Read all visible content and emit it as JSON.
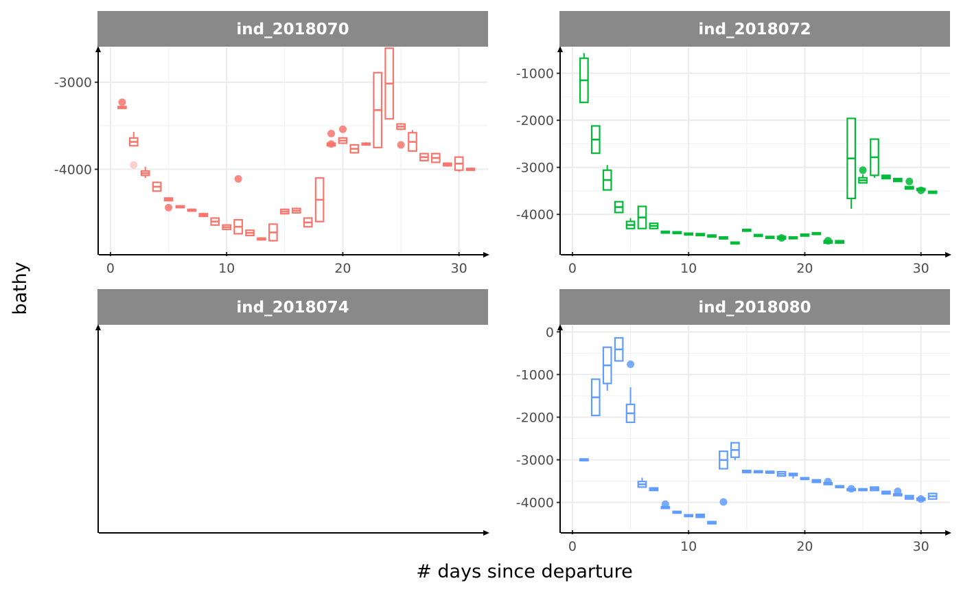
{
  "xlabel": "# days since departure",
  "ylabel": "bathy",
  "chart_data": [
    {
      "type": "boxplot",
      "facet": "ind_2018070",
      "color": "#F8766D",
      "xlim": [
        -1,
        32.5
      ],
      "ylim": [
        -4950,
        -2600
      ],
      "x_ticks": [
        0,
        10,
        20,
        30
      ],
      "y_ticks": [
        -3000,
        -4000
      ],
      "boxes": [
        {
          "x": 1,
          "q1": -3300,
          "q3": -3280,
          "lo": -3300,
          "hi": -3280
        },
        {
          "x": 2,
          "q1": -3730,
          "q3": -3640,
          "lo": -3730,
          "hi": -3570
        },
        {
          "x": 3,
          "q1": -4070,
          "q3": -4020,
          "lo": -4100,
          "hi": -3970
        },
        {
          "x": 4,
          "q1": -4250,
          "q3": -4150,
          "lo": -4260,
          "hi": -4140
        },
        {
          "x": 5,
          "q1": -4360,
          "q3": -4330,
          "lo": -4370,
          "hi": -4320
        },
        {
          "x": 6,
          "q1": -4430,
          "q3": -4420,
          "lo": -4440,
          "hi": -4410
        },
        {
          "x": 7,
          "q1": -4470,
          "q3": -4460,
          "lo": -4480,
          "hi": -4450
        },
        {
          "x": 8,
          "q1": -4540,
          "q3": -4510,
          "lo": -4550,
          "hi": -4500
        },
        {
          "x": 9,
          "q1": -4640,
          "q3": -4560,
          "lo": -4650,
          "hi": -4550
        },
        {
          "x": 10,
          "q1": -4690,
          "q3": -4640,
          "lo": -4700,
          "hi": -4630
        },
        {
          "x": 11,
          "q1": -4740,
          "q3": -4580,
          "lo": -4750,
          "hi": -4570
        },
        {
          "x": 12,
          "q1": -4760,
          "q3": -4700,
          "lo": -4770,
          "hi": -4690
        },
        {
          "x": 13,
          "q1": -4810,
          "q3": -4790,
          "lo": -4820,
          "hi": -4780
        },
        {
          "x": 14,
          "q1": -4820,
          "q3": -4630,
          "lo": -4830,
          "hi": -4620
        },
        {
          "x": 15,
          "q1": -4510,
          "q3": -4460,
          "lo": -4520,
          "hi": -4450
        },
        {
          "x": 16,
          "q1": -4500,
          "q3": -4450,
          "lo": -4510,
          "hi": -4440
        },
        {
          "x": 17,
          "q1": -4660,
          "q3": -4560,
          "lo": -4670,
          "hi": -4550
        },
        {
          "x": 18,
          "q1": -4600,
          "q3": -4100,
          "lo": -4610,
          "hi": -4090
        },
        {
          "x": 19,
          "q1": -3730,
          "q3": -3700,
          "lo": -3740,
          "hi": -3690
        },
        {
          "x": 20,
          "q1": -3700,
          "q3": -3640,
          "lo": -3710,
          "hi": -3630
        },
        {
          "x": 21,
          "q1": -3810,
          "q3": -3720,
          "lo": -3820,
          "hi": -3710
        },
        {
          "x": 22,
          "q1": -3720,
          "q3": -3700,
          "lo": -3730,
          "hi": -3690
        },
        {
          "x": 23,
          "q1": -3750,
          "q3": -2890,
          "lo": -3760,
          "hi": -2880
        },
        {
          "x": 24,
          "q1": -3420,
          "q3": -2610,
          "lo": -3430,
          "hi": -2600
        },
        {
          "x": 25,
          "q1": -3540,
          "q3": -3480,
          "lo": -3550,
          "hi": -3470
        },
        {
          "x": 26,
          "q1": -3790,
          "q3": -3580,
          "lo": -3800,
          "hi": -3550
        },
        {
          "x": 27,
          "q1": -3900,
          "q3": -3820,
          "lo": -3910,
          "hi": -3810
        },
        {
          "x": 28,
          "q1": -3920,
          "q3": -3820,
          "lo": -3930,
          "hi": -3810
        },
        {
          "x": 29,
          "q1": -3960,
          "q3": -3930,
          "lo": -3970,
          "hi": -3920
        },
        {
          "x": 30,
          "q1": -4010,
          "q3": -3860,
          "lo": -4030,
          "hi": -3850
        },
        {
          "x": 31,
          "q1": -4010,
          "q3": -3990,
          "lo": -4020,
          "hi": -3980
        }
      ],
      "outliers": [
        {
          "x": 1,
          "y": -3230
        },
        {
          "x": 2,
          "y": -3950,
          "faint": true
        },
        {
          "x": 5,
          "y": -4440
        },
        {
          "x": 11,
          "y": -4110
        },
        {
          "x": 19,
          "y": -3590
        },
        {
          "x": 19,
          "y": -3710
        },
        {
          "x": 20,
          "y": -3540
        },
        {
          "x": 25,
          "y": -3720
        }
      ]
    },
    {
      "type": "boxplot",
      "facet": "ind_2018072",
      "color": "#00BA38",
      "xlim": [
        -1,
        32.5
      ],
      "ylim": [
        -4800,
        -450
      ],
      "x_ticks": [
        0,
        10,
        20,
        30
      ],
      "y_ticks": [
        -1000,
        -2000,
        -3000,
        -4000
      ],
      "boxes": [
        {
          "x": 1,
          "q1": -1620,
          "q3": -680,
          "lo": -1630,
          "hi": -570
        },
        {
          "x": 2,
          "q1": -2700,
          "q3": -2120,
          "lo": -2710,
          "hi": -2110
        },
        {
          "x": 3,
          "q1": -3480,
          "q3": -3060,
          "lo": -3490,
          "hi": -2950
        },
        {
          "x": 4,
          "q1": -3960,
          "q3": -3730,
          "lo": -3970,
          "hi": -3720
        },
        {
          "x": 5,
          "q1": -4300,
          "q3": -4150,
          "lo": -4310,
          "hi": -4080
        },
        {
          "x": 6,
          "q1": -4300,
          "q3": -3830,
          "lo": -4310,
          "hi": -3820
        },
        {
          "x": 7,
          "q1": -4300,
          "q3": -4190,
          "lo": -4310,
          "hi": -4180
        },
        {
          "x": 8,
          "q1": -4390,
          "q3": -4360,
          "lo": -4400,
          "hi": -4350
        },
        {
          "x": 9,
          "q1": -4390,
          "q3": -4370,
          "lo": -4400,
          "hi": -4360
        },
        {
          "x": 10,
          "q1": -4420,
          "q3": -4400,
          "lo": -4430,
          "hi": -4390
        },
        {
          "x": 11,
          "q1": -4450,
          "q3": -4410,
          "lo": -4460,
          "hi": -4400
        },
        {
          "x": 12,
          "q1": -4480,
          "q3": -4440,
          "lo": -4490,
          "hi": -4430
        },
        {
          "x": 13,
          "q1": -4520,
          "q3": -4480,
          "lo": -4530,
          "hi": -4470
        },
        {
          "x": 14,
          "q1": -4620,
          "q3": -4590,
          "lo": -4630,
          "hi": -4580
        },
        {
          "x": 15,
          "q1": -4350,
          "q3": -4320,
          "lo": -4360,
          "hi": -4310
        },
        {
          "x": 16,
          "q1": -4460,
          "q3": -4430,
          "lo": -4470,
          "hi": -4420
        },
        {
          "x": 17,
          "q1": -4500,
          "q3": -4470,
          "lo": -4510,
          "hi": -4460
        },
        {
          "x": 18,
          "q1": -4520,
          "q3": -4470,
          "lo": -4530,
          "hi": -4460
        },
        {
          "x": 19,
          "q1": -4510,
          "q3": -4480,
          "lo": -4520,
          "hi": -4470
        },
        {
          "x": 20,
          "q1": -4460,
          "q3": -4420,
          "lo": -4470,
          "hi": -4410
        },
        {
          "x": 21,
          "q1": -4420,
          "q3": -4390,
          "lo": -4430,
          "hi": -4380
        },
        {
          "x": 22,
          "q1": -4610,
          "q3": -4560,
          "lo": -4620,
          "hi": -4550
        },
        {
          "x": 23,
          "q1": -4610,
          "q3": -4560,
          "lo": -4620,
          "hi": -4550
        },
        {
          "x": 24,
          "q1": -3660,
          "q3": -1960,
          "lo": -3880,
          "hi": -1950
        },
        {
          "x": 25,
          "q1": -3330,
          "q3": -3220,
          "lo": -3340,
          "hi": -3150
        },
        {
          "x": 26,
          "q1": -3170,
          "q3": -2400,
          "lo": -3220,
          "hi": -2390
        },
        {
          "x": 27,
          "q1": -3240,
          "q3": -3170,
          "lo": -3250,
          "hi": -3160
        },
        {
          "x": 28,
          "q1": -3300,
          "q3": -3240,
          "lo": -3310,
          "hi": -3230
        },
        {
          "x": 29,
          "q1": -3460,
          "q3": -3410,
          "lo": -3470,
          "hi": -3400
        },
        {
          "x": 30,
          "q1": -3490,
          "q3": -3450,
          "lo": -3500,
          "hi": -3440
        },
        {
          "x": 31,
          "q1": -3550,
          "q3": -3510,
          "lo": -3560,
          "hi": -3500
        }
      ],
      "outliers": [
        {
          "x": 18,
          "y": -4500
        },
        {
          "x": 22,
          "y": -4560
        },
        {
          "x": 25,
          "y": -3060
        },
        {
          "x": 29,
          "y": -3300
        },
        {
          "x": 30,
          "y": -3490
        }
      ]
    },
    {
      "type": "boxplot",
      "facet": "ind_2018074",
      "color": "#000000",
      "boxes": [],
      "outliers": []
    },
    {
      "type": "boxplot",
      "facet": "ind_2018080",
      "color": "#619CFF",
      "xlim": [
        -1,
        32.5
      ],
      "ylim": [
        -4650,
        150
      ],
      "x_ticks": [
        0,
        10,
        20,
        30
      ],
      "y_ticks": [
        0,
        -1000,
        -2000,
        -3000,
        -4000
      ],
      "boxes": [
        {
          "x": 1,
          "q1": -3000,
          "q3": -2980,
          "lo": -3010,
          "hi": -2970
        },
        {
          "x": 2,
          "q1": -1960,
          "q3": -1110,
          "lo": -1970,
          "hi": -1100
        },
        {
          "x": 3,
          "q1": -1210,
          "q3": -360,
          "lo": -1380,
          "hi": -350
        },
        {
          "x": 4,
          "q1": -680,
          "q3": -140,
          "lo": -690,
          "hi": -130
        },
        {
          "x": 5,
          "q1": -2120,
          "q3": -1700,
          "lo": -2130,
          "hi": -1300
        },
        {
          "x": 6,
          "q1": -3640,
          "q3": -3510,
          "lo": -3650,
          "hi": -3420
        },
        {
          "x": 7,
          "q1": -3720,
          "q3": -3660,
          "lo": -3730,
          "hi": -3650
        },
        {
          "x": 8,
          "q1": -4120,
          "q3": -4100,
          "lo": -4130,
          "hi": -4090
        },
        {
          "x": 9,
          "q1": -4240,
          "q3": -4210,
          "lo": -4250,
          "hi": -4200
        },
        {
          "x": 10,
          "q1": -4330,
          "q3": -4290,
          "lo": -4340,
          "hi": -4280
        },
        {
          "x": 11,
          "q1": -4350,
          "q3": -4280,
          "lo": -4360,
          "hi": -4270
        },
        {
          "x": 12,
          "q1": -4500,
          "q3": -4450,
          "lo": -4510,
          "hi": -4440
        },
        {
          "x": 13,
          "q1": -3210,
          "q3": -2800,
          "lo": -3220,
          "hi": -2790
        },
        {
          "x": 14,
          "q1": -2940,
          "q3": -2600,
          "lo": -3010,
          "hi": -2590
        },
        {
          "x": 15,
          "q1": -3300,
          "q3": -3250,
          "lo": -3310,
          "hi": -3240
        },
        {
          "x": 16,
          "q1": -3300,
          "q3": -3260,
          "lo": -3310,
          "hi": -3250
        },
        {
          "x": 17,
          "q1": -3290,
          "q3": -3270,
          "lo": -3300,
          "hi": -3260
        },
        {
          "x": 18,
          "q1": -3380,
          "q3": -3280,
          "lo": -3390,
          "hi": -3270
        },
        {
          "x": 19,
          "q1": -3370,
          "q3": -3320,
          "lo": -3440,
          "hi": -3310
        },
        {
          "x": 20,
          "q1": -3440,
          "q3": -3420,
          "lo": -3450,
          "hi": -3410
        },
        {
          "x": 21,
          "q1": -3530,
          "q3": -3470,
          "lo": -3540,
          "hi": -3460
        },
        {
          "x": 22,
          "q1": -3570,
          "q3": -3540,
          "lo": -3580,
          "hi": -3530
        },
        {
          "x": 23,
          "q1": -3640,
          "q3": -3610,
          "lo": -3650,
          "hi": -3600
        },
        {
          "x": 24,
          "q1": -3700,
          "q3": -3680,
          "lo": -3710,
          "hi": -3670
        },
        {
          "x": 25,
          "q1": -3700,
          "q3": -3680,
          "lo": -3710,
          "hi": -3670
        },
        {
          "x": 26,
          "q1": -3720,
          "q3": -3640,
          "lo": -3730,
          "hi": -3630
        },
        {
          "x": 27,
          "q1": -3800,
          "q3": -3740,
          "lo": -3810,
          "hi": -3730
        },
        {
          "x": 28,
          "q1": -3840,
          "q3": -3800,
          "lo": -3850,
          "hi": -3790
        },
        {
          "x": 29,
          "q1": -3920,
          "q3": -3840,
          "lo": -3930,
          "hi": -3830
        },
        {
          "x": 30,
          "q1": -3950,
          "q3": -3900,
          "lo": -3960,
          "hi": -3890
        },
        {
          "x": 31,
          "q1": -3920,
          "q3": -3790,
          "lo": -3930,
          "hi": -3780
        }
      ],
      "outliers": [
        {
          "x": 5,
          "y": -760
        },
        {
          "x": 8,
          "y": -4040
        },
        {
          "x": 13,
          "y": -3990
        },
        {
          "x": 22,
          "y": -3510
        },
        {
          "x": 24,
          "y": -3680
        },
        {
          "x": 28,
          "y": -3740
        },
        {
          "x": 30,
          "y": -3920
        }
      ]
    }
  ]
}
